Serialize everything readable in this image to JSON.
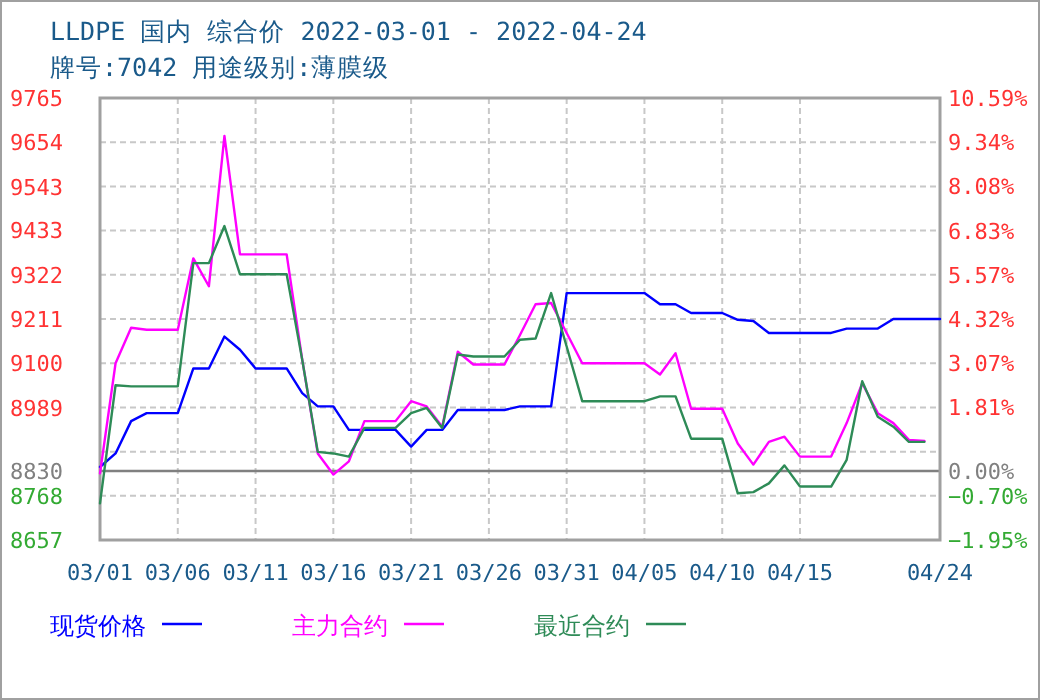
{
  "chart_data": {
    "type": "line",
    "title": "LLDPE 国内 综合价 2022-03-01 - 2022-04-24",
    "subtitle": "牌号:7042 用途级别:薄膜级",
    "xlim": [
      "2022-03-01",
      "2022-04-24"
    ],
    "xticks": [
      {
        "value": "2022-03-01",
        "label": "03/01"
      },
      {
        "value": "2022-03-06",
        "label": "03/06"
      },
      {
        "value": "2022-03-11",
        "label": "03/11"
      },
      {
        "value": "2022-03-16",
        "label": "03/16"
      },
      {
        "value": "2022-03-21",
        "label": "03/21"
      },
      {
        "value": "2022-03-26",
        "label": "03/26"
      },
      {
        "value": "2022-03-31",
        "label": "03/31"
      },
      {
        "value": "2022-04-05",
        "label": "04/05"
      },
      {
        "value": "2022-04-10",
        "label": "04/10"
      },
      {
        "value": "2022-04-15",
        "label": "04/15"
      },
      {
        "value": "2022-04-24",
        "label": "04/24"
      }
    ],
    "ylim": [
      8657,
      9765
    ],
    "yticks": [
      9765,
      9654,
      9543,
      9433,
      9322,
      9211,
      9100,
      8989,
      {
        "value": 8878,
        "label": null
      },
      8830,
      8768,
      8657
    ],
    "y2lim": [
      -1.95,
      10.59
    ],
    "y2ticks": [
      {
        "value": 10.59,
        "label": "10.59%"
      },
      {
        "value": 9.34,
        "label": "9.34%"
      },
      {
        "value": 8.08,
        "label": "8.08%"
      },
      {
        "value": 6.83,
        "label": "6.83%"
      },
      {
        "value": 5.57,
        "label": "5.57%"
      },
      {
        "value": 4.32,
        "label": "4.32%"
      },
      {
        "value": 3.07,
        "label": "3.07%"
      },
      {
        "value": 1.81,
        "label": "1.81%"
      },
      {
        "value": 0.0,
        "label": "0.00%"
      },
      {
        "value": -0.7,
        "label": "−0.70%"
      },
      {
        "value": -1.95,
        "label": "−1.95%"
      }
    ],
    "ref_lines": [
      {
        "axis": "y",
        "value": 8830,
        "color": "#808080"
      }
    ],
    "grid": true,
    "legend": "bottom",
    "x": [
      "2022-03-01",
      "2022-03-02",
      "2022-03-03",
      "2022-03-04",
      "2022-03-05",
      "2022-03-06",
      "2022-03-07",
      "2022-03-08",
      "2022-03-09",
      "2022-03-10",
      "2022-03-11",
      "2022-03-12",
      "2022-03-13",
      "2022-03-14",
      "2022-03-15",
      "2022-03-16",
      "2022-03-17",
      "2022-03-18",
      "2022-03-19",
      "2022-03-20",
      "2022-03-21",
      "2022-03-22",
      "2022-03-23",
      "2022-03-24",
      "2022-03-25",
      "2022-03-26",
      "2022-03-27",
      "2022-03-28",
      "2022-03-29",
      "2022-03-30",
      "2022-03-31",
      "2022-04-01",
      "2022-04-02",
      "2022-04-03",
      "2022-04-04",
      "2022-04-05",
      "2022-04-06",
      "2022-04-07",
      "2022-04-08",
      "2022-04-09",
      "2022-04-10",
      "2022-04-11",
      "2022-04-12",
      "2022-04-13",
      "2022-04-14",
      "2022-04-15",
      "2022-04-16",
      "2022-04-17",
      "2022-04-18",
      "2022-04-19",
      "2022-04-20",
      "2022-04-21",
      "2022-04-22",
      "2022-04-23",
      "2022-04-24"
    ],
    "series": [
      {
        "name": "现货价格",
        "color": "#0000ff",
        "values": [
          8840,
          8874,
          8955,
          8975,
          8975,
          8975,
          9087,
          9087,
          9167,
          9134,
          9087,
          9087,
          9087,
          9025,
          8992,
          8992,
          8933,
          8933,
          8933,
          8933,
          8891,
          8933,
          8933,
          8983,
          8983,
          8983,
          8983,
          8992,
          8992,
          8992,
          9276,
          9276,
          9276,
          9276,
          9276,
          9276,
          9248,
          9248,
          9226,
          9226,
          9226,
          9209,
          9206,
          9176,
          9176,
          9176,
          9176,
          9176,
          9187,
          9187,
          9187,
          9211,
          9211,
          9211,
          9211
        ]
      },
      {
        "name": "主力合约",
        "color": "#ff00ff",
        "values": [
          8824,
          9100,
          9189,
          9184,
          9184,
          9184,
          9363,
          9293,
          9670,
          9373,
          9373,
          9373,
          9373,
          9109,
          8874,
          8821,
          8854,
          8955,
          8955,
          8955,
          9005,
          8992,
          8941,
          9129,
          9097,
          9097,
          9097,
          9171,
          9248,
          9251,
          9176,
          9100,
          9100,
          9100,
          9100,
          9100,
          9072,
          9125,
          8986,
          8986,
          8986,
          8899,
          8846,
          8903,
          8916,
          8866,
          8866,
          8866,
          8950,
          9050,
          8975,
          8950,
          8908,
          8905,
          null
        ]
      },
      {
        "name": "最近合约",
        "color": "#2e8b57",
        "values": [
          8749,
          9045,
          9042,
          9042,
          9042,
          9042,
          9351,
          9351,
          9444,
          9323,
          9323,
          9323,
          9323,
          9109,
          8878,
          8874,
          8866,
          8938,
          8938,
          8938,
          8975,
          8988,
          8938,
          9122,
          9117,
          9117,
          9117,
          9159,
          9162,
          9276,
          9142,
          9005,
          9005,
          9005,
          9005,
          9005,
          9017,
          9017,
          8911,
          8911,
          8911,
          8774,
          8777,
          8799,
          8844,
          8791,
          8791,
          8791,
          8858,
          9055,
          8966,
          8941,
          8903,
          8903,
          null
        ]
      }
    ]
  }
}
